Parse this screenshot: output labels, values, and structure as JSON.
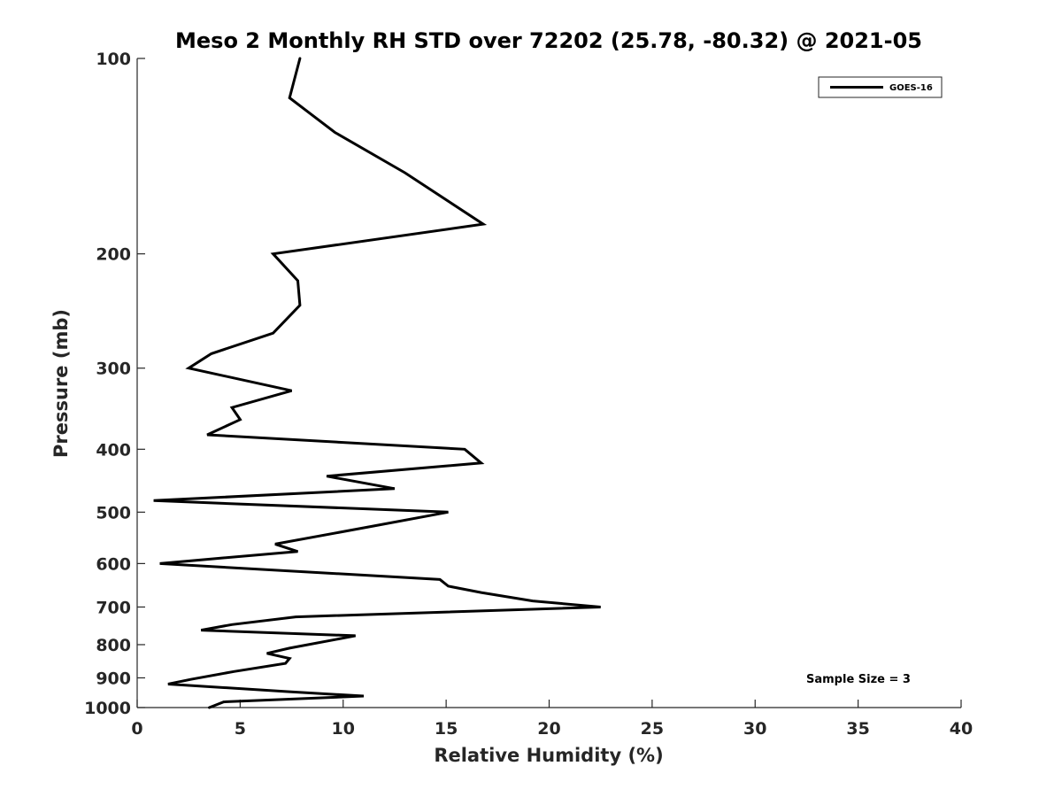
{
  "chart_data": {
    "type": "line",
    "title": "Meso 2 Monthly RH STD over 72202 (25.78, -80.32) @ 2021-05",
    "xlabel": "Relative Humidity (%)",
    "ylabel": "Pressure (mb)",
    "xlim": [
      0,
      40
    ],
    "ylim": [
      1000,
      100
    ],
    "yscale": "log",
    "x_ticks": [
      0,
      5,
      10,
      15,
      20,
      25,
      30,
      35,
      40
    ],
    "x_tick_labels": [
      "0",
      "5",
      "10",
      "15",
      "20",
      "25",
      "30",
      "35",
      "40"
    ],
    "y_ticks": [
      100,
      200,
      300,
      400,
      500,
      600,
      700,
      800,
      900,
      1000
    ],
    "y_tick_labels": [
      "100",
      "200",
      "300",
      "400",
      "500",
      "600",
      "700",
      "800",
      "900",
      "1000"
    ],
    "grid": false,
    "legend_position": "top-right",
    "annotation": "Sample Size = 3",
    "series": [
      {
        "name": "GOES-16",
        "color": "#000000",
        "points": [
          [
            7.9,
            100
          ],
          [
            7.4,
            115
          ],
          [
            9.6,
            130
          ],
          [
            13.0,
            150
          ],
          [
            16.8,
            180
          ],
          [
            6.6,
            200
          ],
          [
            7.8,
            220
          ],
          [
            7.9,
            240
          ],
          [
            6.6,
            265
          ],
          [
            3.6,
            285
          ],
          [
            2.5,
            300
          ],
          [
            7.5,
            325
          ],
          [
            4.6,
            345
          ],
          [
            5.0,
            360
          ],
          [
            3.4,
            380
          ],
          [
            15.9,
            400
          ],
          [
            16.7,
            420
          ],
          [
            9.2,
            440
          ],
          [
            12.5,
            460
          ],
          [
            0.8,
            480
          ],
          [
            15.1,
            500
          ],
          [
            11.5,
            525
          ],
          [
            6.7,
            560
          ],
          [
            7.8,
            575
          ],
          [
            3.7,
            590
          ],
          [
            1.1,
            600
          ],
          [
            14.7,
            635
          ],
          [
            15.1,
            650
          ],
          [
            16.7,
            665
          ],
          [
            19.2,
            685
          ],
          [
            22.5,
            700
          ],
          [
            7.7,
            725
          ],
          [
            4.6,
            745
          ],
          [
            3.1,
            760
          ],
          [
            10.6,
            775
          ],
          [
            7.4,
            810
          ],
          [
            6.3,
            825
          ],
          [
            7.4,
            840
          ],
          [
            7.2,
            855
          ],
          [
            4.7,
            880
          ],
          [
            2.6,
            905
          ],
          [
            1.5,
            920
          ],
          [
            7.3,
            945
          ],
          [
            11.0,
            960
          ],
          [
            4.2,
            980
          ],
          [
            3.5,
            1000
          ]
        ]
      }
    ]
  }
}
